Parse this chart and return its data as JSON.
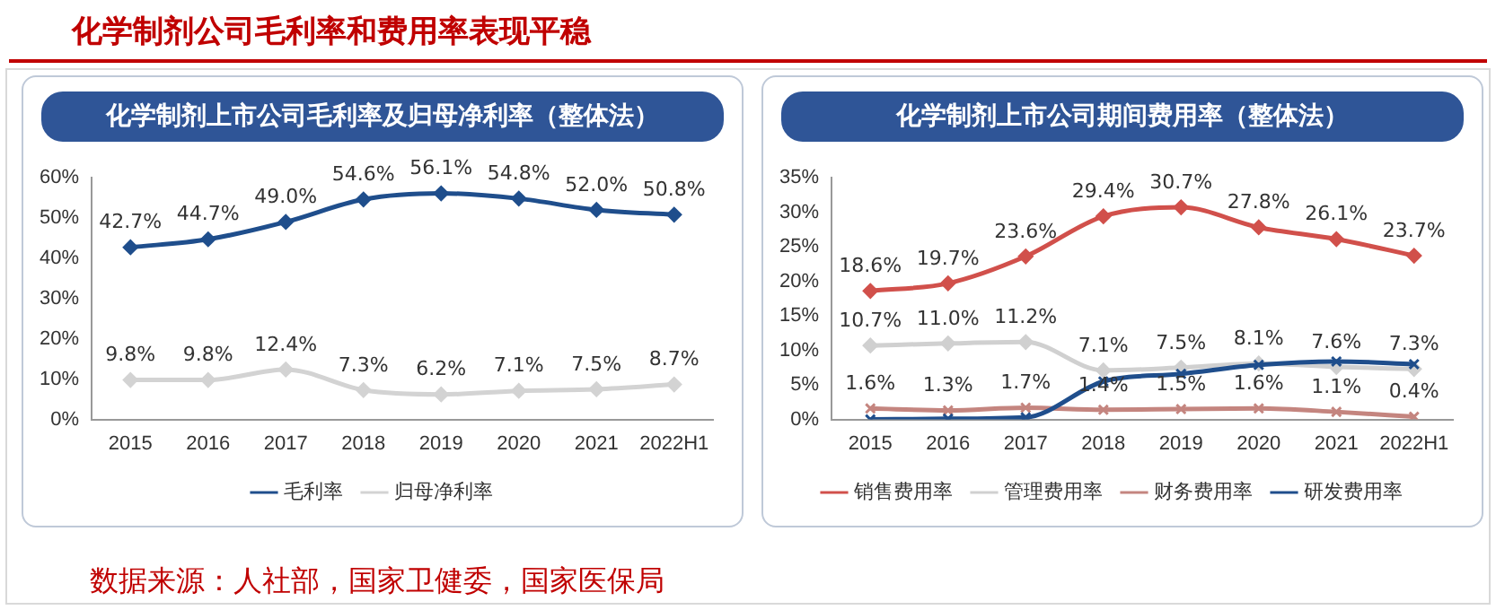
{
  "chart_data": [
    {
      "type": "line",
      "title": "化学制剂公司毛利率和费用率表现平稳",
      "subtitle": "化学制剂上市公司毛利率及归母净利率（整体法）",
      "categories": [
        "2015",
        "2016",
        "2017",
        "2018",
        "2019",
        "2020",
        "2021",
        "2022H1"
      ],
      "series": [
        {
          "name": "毛利率",
          "color": "#1f4e8c",
          "marker": "diamond",
          "values": [
            42.7,
            44.7,
            49.0,
            54.6,
            56.1,
            54.8,
            52.0,
            50.8
          ],
          "value_labels": [
            "42.7%",
            "44.7%",
            "49.0%",
            "54.6%",
            "56.1%",
            "54.8%",
            "52.0%",
            "50.8%"
          ]
        },
        {
          "name": "归母净利率",
          "color": "#d3d3d3",
          "marker": "diamond",
          "values": [
            9.8,
            9.8,
            12.4,
            7.3,
            6.2,
            7.1,
            7.5,
            8.7
          ],
          "value_labels": [
            "9.8%",
            "9.8%",
            "12.4%",
            "7.3%",
            "6.2%",
            "7.1%",
            "7.5%",
            "8.7%"
          ]
        }
      ],
      "ylim": [
        0,
        60
      ],
      "yticks": [
        {
          "value": 0,
          "label": "0%"
        },
        {
          "value": 10,
          "label": "10%"
        },
        {
          "value": 20,
          "label": "20%"
        },
        {
          "value": 30,
          "label": "30%"
        },
        {
          "value": 40,
          "label": "40%"
        },
        {
          "value": 50,
          "label": "50%"
        },
        {
          "value": 60,
          "label": "60%"
        }
      ],
      "grid": false,
      "legend": "bottom"
    },
    {
      "type": "line",
      "title": "化学制剂上市公司期间费用率（整体法）",
      "categories": [
        "2015",
        "2016",
        "2017",
        "2018",
        "2019",
        "2020",
        "2021",
        "2022H1"
      ],
      "series": [
        {
          "name": "销售费用率",
          "color": "#d1504b",
          "marker": "diamond",
          "values": [
            18.6,
            19.7,
            23.6,
            29.4,
            30.7,
            27.8,
            26.1,
            23.7
          ],
          "value_labels": [
            "18.6%",
            "19.7%",
            "23.6%",
            "29.4%",
            "30.7%",
            "27.8%",
            "26.1%",
            "23.7%"
          ]
        },
        {
          "name": "管理费用率",
          "color": "#d0d0d0",
          "marker": "diamond",
          "values": [
            10.7,
            11.0,
            11.2,
            7.1,
            7.5,
            8.1,
            7.6,
            7.3
          ],
          "value_labels": [
            "10.7%",
            "11.0%",
            "11.2%",
            "7.1%",
            "7.5%",
            "8.1%",
            "7.6%",
            "7.3%"
          ]
        },
        {
          "name": "财务费用率",
          "color": "#c4857f",
          "marker": "cross",
          "values": [
            1.6,
            1.3,
            1.7,
            1.4,
            1.5,
            1.6,
            1.1,
            0.4
          ],
          "value_labels": [
            "1.6%",
            "1.3%",
            "1.7%",
            "1.4%",
            "1.5%",
            "1.6%",
            "1.1%",
            "0.4%"
          ]
        },
        {
          "name": "研发费用率",
          "color": "#1f4e8c",
          "marker": "cross",
          "values": [
            0.0,
            0.1,
            0.3,
            5.5,
            6.6,
            7.9,
            8.4,
            8.0
          ]
        }
      ],
      "ylim": [
        0,
        35
      ],
      "yticks": [
        {
          "value": 0,
          "label": "0%"
        },
        {
          "value": 5,
          "label": "5%"
        },
        {
          "value": 10,
          "label": "10%"
        },
        {
          "value": 15,
          "label": "15%"
        },
        {
          "value": 20,
          "label": "20%"
        },
        {
          "value": 25,
          "label": "25%"
        },
        {
          "value": 30,
          "label": "30%"
        },
        {
          "value": 35,
          "label": "35%"
        }
      ],
      "grid": false,
      "legend": "bottom",
      "annotations": [
        "数据来源：人社部，国家卫健委，国家医保局"
      ]
    }
  ]
}
